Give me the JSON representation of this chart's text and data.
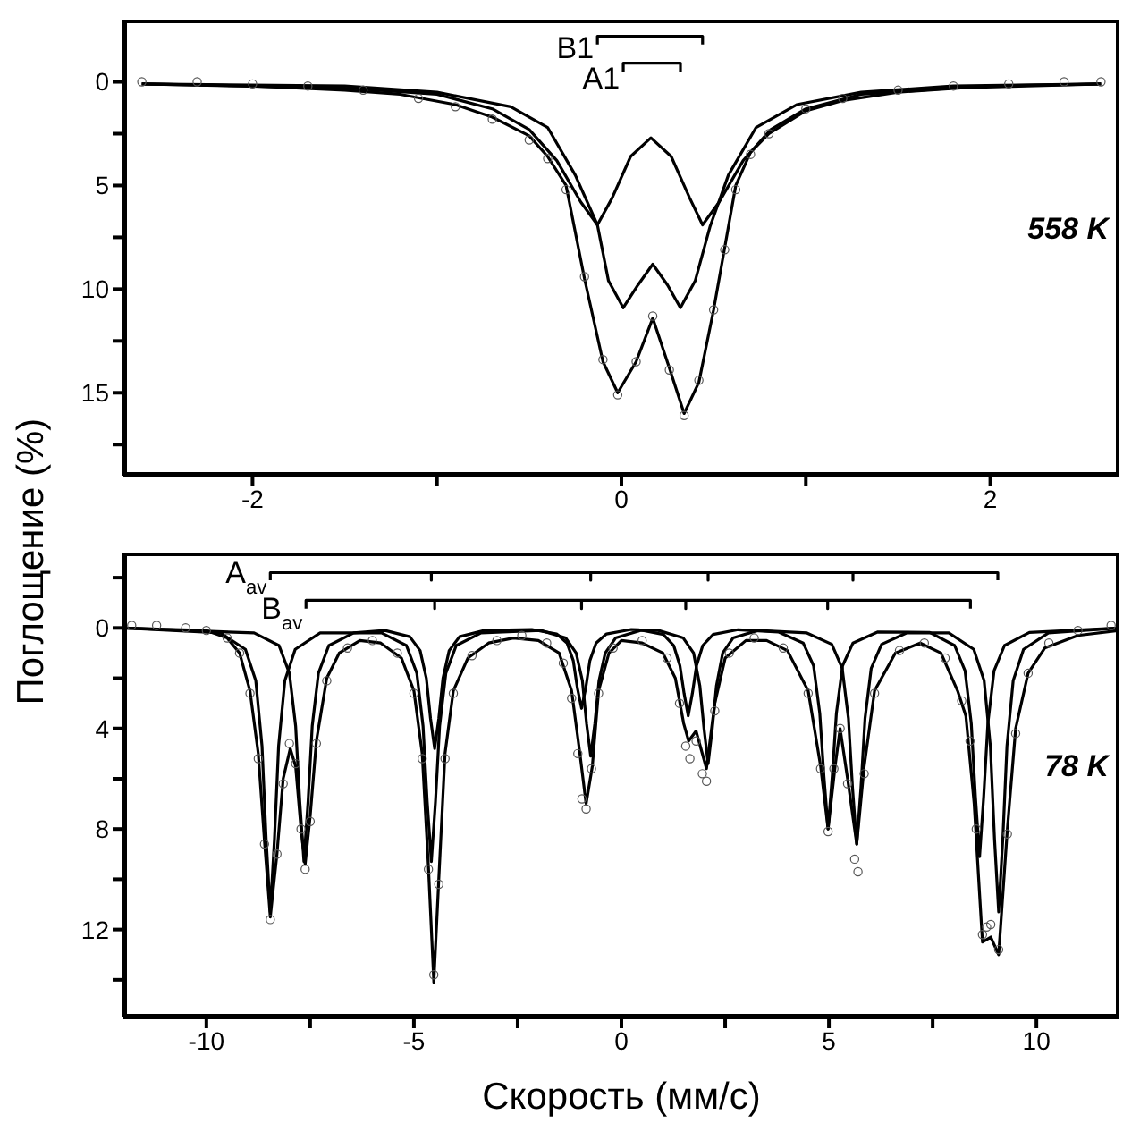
{
  "chart_data": [
    {
      "type": "line",
      "xlim": [
        -2.7,
        2.7
      ],
      "xticks": [
        -2,
        {
          "value": -1,
          "label": null
        },
        0,
        {
          "value": 1,
          "label": null
        },
        2
      ],
      "ylim": [
        19,
        -3
      ],
      "yticks": [
        0,
        {
          "value": 2.5,
          "label": null
        },
        5,
        {
          "value": 7.5,
          "label": null
        },
        10,
        {
          "value": 12.5,
          "label": null
        },
        15,
        {
          "value": 17.5,
          "label": null
        }
      ],
      "grid": false,
      "line_style": "solid",
      "annotations": [
        "558 K",
        {
          "text": "B1",
          "x": -0.13,
          "y": -1.65
        },
        {
          "text": "A1",
          "x": 0.01,
          "y": -0.2
        }
      ],
      "series": [
        {
          "type": "scatter",
          "marker": "circle",
          "color": "#555555",
          "x": [
            -2.6,
            -2.3,
            -2,
            -1.7,
            -1.4,
            -1.1,
            -0.9,
            -0.7,
            -0.5,
            -0.4,
            -0.3,
            -0.2,
            -0.1,
            -0.02,
            0.08,
            0.17,
            0.26,
            0.34,
            0.42,
            0.5,
            0.56,
            0.62,
            0.7,
            0.8,
            1.0,
            1.2,
            1.5,
            1.8,
            2.1,
            2.4,
            2.6
          ],
          "values": [
            0,
            0,
            0.1,
            0.2,
            0.4,
            0.8,
            1.2,
            1.8,
            2.8,
            3.7,
            5.2,
            9.4,
            13.4,
            15.1,
            13.5,
            11.3,
            13.9,
            16.1,
            14.4,
            11,
            8.1,
            5.2,
            3.5,
            2.5,
            1.3,
            0.8,
            0.4,
            0.2,
            0.1,
            0,
            0
          ]
        },
        {
          "type": "line",
          "color": "#000000",
          "x": [
            -2.6,
            -2,
            -1.5,
            -1.2,
            -0.9,
            -0.7,
            -0.5,
            -0.4,
            -0.3,
            -0.2,
            -0.1,
            -0.02,
            0.08,
            0.17,
            0.26,
            0.34,
            0.42,
            0.5,
            0.56,
            0.62,
            0.7,
            0.8,
            1.0,
            1.2,
            1.5,
            2,
            2.6
          ],
          "values": [
            0.1,
            0.2,
            0.4,
            0.6,
            1.1,
            1.7,
            2.6,
            3.6,
            5,
            9.5,
            13.5,
            15.0,
            13.5,
            11.4,
            13.8,
            16.0,
            14.5,
            11,
            8,
            5,
            3.4,
            2.5,
            1.4,
            0.9,
            0.5,
            0.2,
            0.1
          ]
        },
        {
          "type": "line",
          "color": "#000000",
          "x": [
            -2.6,
            -1.5,
            -1,
            -0.6,
            -0.4,
            -0.25,
            -0.13,
            -0.07,
            0.01,
            0.09,
            0.17,
            0.25,
            0.32,
            0.4,
            0.48,
            0.58,
            0.73,
            0.95,
            1.3,
            1.8,
            2.6
          ],
          "values": [
            0.1,
            0.2,
            0.5,
            1.2,
            2.2,
            4.5,
            6.9,
            9.6,
            10.9,
            9.8,
            8.8,
            9.8,
            10.9,
            9.6,
            7,
            4.5,
            2.2,
            1.1,
            0.5,
            0.2,
            0.1
          ]
        },
        {
          "type": "line",
          "color": "#000000",
          "x": [
            -2.6,
            -1.5,
            -1,
            -0.7,
            -0.5,
            -0.35,
            -0.22,
            -0.13,
            -0.05,
            0.05,
            0.16,
            0.27,
            0.37,
            0.44,
            0.53,
            0.66,
            0.81,
            1.0,
            1.3,
            1.8,
            2.6
          ],
          "values": [
            0.1,
            0.3,
            0.6,
            1.3,
            2.3,
            3.8,
            5.8,
            6.9,
            5.6,
            3.6,
            2.7,
            3.6,
            5.6,
            6.9,
            5.8,
            3.8,
            2.3,
            1.3,
            0.6,
            0.3,
            0.1
          ]
        },
        {
          "type": "line",
          "color": "#000000",
          "x": [
            -0.13,
            -0.13,
            0.44,
            0.44
          ],
          "values": [
            -1.8,
            -2.2,
            -2.2,
            -1.8
          ]
        },
        {
          "type": "line",
          "color": "#000000",
          "x": [
            0.01,
            0.01,
            0.32,
            0.32
          ],
          "values": [
            -0.5,
            -0.9,
            -0.9,
            -0.5
          ]
        }
      ]
    },
    {
      "type": "line",
      "xlabel": "Скорость (мм/с)",
      "ylabel": "Поглощение (%)",
      "xlim": [
        -12,
        12
      ],
      "xticks": [
        -10,
        {
          "value": -7.5,
          "label": null
        },
        -5,
        {
          "value": -2.5,
          "label": null
        },
        0,
        {
          "value": 2.5,
          "label": null
        },
        5,
        {
          "value": 7.5,
          "label": null
        },
        10
      ],
      "ylim": [
        15.5,
        -3
      ],
      "yticks": [
        {
          "value": -2,
          "label": null
        },
        0,
        {
          "value": 2,
          "label": null
        },
        4,
        {
          "value": 6,
          "label": null
        },
        8,
        {
          "value": 10,
          "label": null
        },
        12,
        {
          "value": 14,
          "label": null
        }
      ],
      "grid": false,
      "line_style": "solid",
      "annotations": [
        "78 K",
        {
          "text": "A$_{av}$",
          "x": -8.46,
          "y": -2.2
        },
        {
          "text": "B$_{av}$",
          "x": -7.6,
          "y": -0.8
        }
      ],
      "series": [
        {
          "type": "scatter",
          "marker": "circle",
          "color": "#555555",
          "x": [
            -11.8,
            -11.2,
            -10.5,
            -10,
            -9.5,
            -9.2,
            -8.95,
            -8.75,
            -8.6,
            -8.46,
            -8.3,
            -8.15,
            -8,
            -7.85,
            -7.72,
            -7.62,
            -7.5,
            -7.35,
            -7.1,
            -6.6,
            -6,
            -5.4,
            -5,
            -4.8,
            -4.65,
            -4.52,
            -4.4,
            -4.25,
            -4.05,
            -3.6,
            -3,
            -2.4,
            -1.8,
            -1.4,
            -1.2,
            -1.05,
            -0.95,
            -0.85,
            -0.72,
            -0.55,
            -0.2,
            0.5,
            1.1,
            1.4,
            1.55,
            1.65,
            1.8,
            1.95,
            2.05,
            2.25,
            2.6,
            3.2,
            3.9,
            4.5,
            4.8,
            4.98,
            5.12,
            5.27,
            5.45,
            5.62,
            5.7,
            5.85,
            6.1,
            6.7,
            7.3,
            7.8,
            8.2,
            8.4,
            8.55,
            8.7,
            8.8,
            8.9,
            9.09,
            9.3,
            9.5,
            9.8,
            10.3,
            11,
            11.8
          ],
          "values": [
            -0.1,
            -0.1,
            0,
            0.1,
            0.4,
            1.0,
            2.6,
            5.2,
            8.6,
            11.6,
            9,
            6.2,
            4.6,
            5.4,
            8,
            9.6,
            7.7,
            4.6,
            2.1,
            0.8,
            0.5,
            1.0,
            2.6,
            5.2,
            9.6,
            13.8,
            10.2,
            5.2,
            2.6,
            1.1,
            0.5,
            0.3,
            0.6,
            1.4,
            2.8,
            5,
            6.8,
            7.2,
            5.6,
            2.6,
            0.8,
            0.5,
            1.2,
            3,
            4.7,
            5.2,
            4.5,
            5.8,
            6.1,
            3.3,
            1,
            0.4,
            0.8,
            2.6,
            5.6,
            8.1,
            5.6,
            4.0,
            6.2,
            9.2,
            9.7,
            5.8,
            2.6,
            0.9,
            0.6,
            1.2,
            2.9,
            4.5,
            8,
            12.2,
            11.9,
            11.8,
            12.8,
            8.2,
            4.2,
            1.8,
            0.6,
            0.1,
            -0.1
          ]
        },
        {
          "type": "line",
          "color": "#000000",
          "x": [
            -12,
            -11,
            -10,
            -9.5,
            -9.2,
            -8.95,
            -8.75,
            -8.6,
            -8.46,
            -8.3,
            -8.15,
            -7.98,
            -7.85,
            -7.72,
            -7.62,
            -7.5,
            -7.35,
            -7.1,
            -6.8,
            -6.3,
            -5.8,
            -5.3,
            -5.0,
            -4.8,
            -4.65,
            -4.52,
            -4.4,
            -4.25,
            -4.05,
            -3.7,
            -3.2,
            -2.6,
            -2,
            -1.5,
            -1.2,
            -1.0,
            -0.85,
            -0.7,
            -0.55,
            -0.3,
            0,
            0.5,
            1.0,
            1.3,
            1.5,
            1.62,
            1.8,
            2.05,
            2.25,
            2.5,
            3,
            3.5,
            4.0,
            4.5,
            4.8,
            4.98,
            5.15,
            5.27,
            5.45,
            5.67,
            5.85,
            6.1,
            6.6,
            7.2,
            7.7,
            8.1,
            8.3,
            8.5,
            8.7,
            8.9,
            9.09,
            9.3,
            9.5,
            9.8,
            10.2,
            11,
            12
          ],
          "values": [
            0,
            0.05,
            0.1,
            0.4,
            1.0,
            2.5,
            5,
            8.5,
            11.5,
            9,
            6,
            4.8,
            5.5,
            8,
            9.4,
            7.5,
            4.5,
            2,
            1,
            0.5,
            0.6,
            1.2,
            2.5,
            5,
            9.5,
            14.1,
            10,
            5,
            2.5,
            1.2,
            0.6,
            0.4,
            0.5,
            1.0,
            2.5,
            5,
            7.0,
            5.5,
            2.5,
            1.0,
            0.5,
            0.6,
            1.0,
            2.0,
            3.8,
            4.5,
            4.1,
            5.6,
            3.0,
            1.2,
            0.5,
            0.5,
            0.9,
            2.5,
            5.5,
            8.0,
            5.5,
            4.0,
            6.0,
            8.6,
            5.5,
            2.5,
            1.0,
            0.6,
            1.0,
            2.5,
            3.5,
            7,
            12.5,
            12.3,
            13.0,
            8,
            4,
            1.8,
            0.8,
            0.3,
            0.1
          ]
        },
        {
          "type": "line",
          "color": "#000000",
          "x": [
            -12,
            -9.66,
            -9.06,
            -8.81,
            -8.66,
            -8.56,
            -8.46,
            -8.36,
            -8.26,
            -8.11,
            -7.86,
            -7.26,
            -5.78,
            -5.18,
            -4.93,
            -4.78,
            -4.68,
            -4.58,
            -4.48,
            -4.38,
            -4.23,
            -3.98,
            -3.38,
            -1.94,
            -1.34,
            -1.09,
            -0.94,
            -0.84,
            -0.74,
            -0.64,
            -0.54,
            -0.39,
            -0.14,
            0.46,
            0.89,
            1.49,
            1.74,
            1.89,
            1.99,
            2.09,
            2.19,
            2.29,
            2.44,
            2.69,
            3.29,
            4.47,
            5.07,
            5.32,
            5.47,
            5.57,
            5.67,
            5.77,
            5.87,
            6.02,
            6.27,
            6.87,
            7.89,
            8.49,
            8.74,
            8.89,
            8.99,
            9.09,
            9.19,
            9.29,
            9.44,
            9.69,
            10.29,
            12
          ],
          "values": [
            0,
            0.2,
            0.85,
            2.1,
            4.7,
            8.4,
            11.3,
            8.4,
            4.7,
            2.1,
            0.85,
            0.2,
            0.2,
            0.7,
            1.8,
            3.9,
            6.9,
            9.3,
            6.9,
            3.9,
            1.8,
            0.7,
            0.2,
            0.1,
            0.4,
            1.0,
            2.1,
            3.8,
            5.1,
            3.8,
            2.1,
            1.0,
            0.4,
            0.1,
            0.1,
            0.4,
            1.0,
            2.3,
            4.0,
            5.4,
            4.0,
            2.3,
            1.0,
            0.4,
            0.1,
            0.2,
            0.65,
            1.6,
            3.6,
            6.4,
            8.6,
            6.4,
            3.6,
            1.6,
            0.65,
            0.2,
            0.2,
            0.85,
            2.1,
            4.7,
            8.4,
            11.3,
            8.4,
            4.7,
            2.1,
            0.85,
            0.2,
            0
          ]
        },
        {
          "type": "line",
          "color": "#000000",
          "x": [
            -12,
            -8.85,
            -8.25,
            -8.0,
            -7.85,
            -7.75,
            -7.65,
            -7.55,
            -7.45,
            -7.3,
            -7.05,
            -6.45,
            -5.7,
            -5.1,
            -4.85,
            -4.7,
            -4.6,
            -4.5,
            -4.4,
            -4.3,
            -4.15,
            -3.9,
            -3.3,
            -2.16,
            -1.56,
            -1.31,
            -1.16,
            -1.06,
            -0.96,
            -0.86,
            -0.76,
            -0.61,
            -0.36,
            0.24,
            0.41,
            1.01,
            1.26,
            1.41,
            1.51,
            1.61,
            1.71,
            1.81,
            1.96,
            2.21,
            2.81,
            3.78,
            4.38,
            4.63,
            4.78,
            4.88,
            4.98,
            5.08,
            5.18,
            5.33,
            5.58,
            6.18,
            7.43,
            8.03,
            8.28,
            8.43,
            8.53,
            8.63,
            8.73,
            8.83,
            8.98,
            9.23,
            9.83,
            12
          ],
          "values": [
            0,
            0.2,
            0.7,
            1.8,
            3.9,
            6.9,
            9.3,
            6.9,
            3.9,
            1.8,
            0.7,
            0.2,
            0.1,
            0.35,
            0.9,
            2.0,
            3.6,
            4.8,
            3.6,
            2.0,
            0.9,
            0.35,
            0.1,
            0.06,
            0.24,
            0.6,
            1.3,
            2.4,
            3.2,
            2.4,
            1.3,
            0.6,
            0.24,
            0.06,
            0.07,
            0.26,
            0.7,
            1.5,
            2.6,
            3.5,
            2.6,
            1.5,
            0.7,
            0.26,
            0.07,
            0.16,
            0.6,
            1.5,
            3.4,
            5.9,
            8.0,
            5.9,
            3.4,
            1.5,
            0.6,
            0.16,
            0.18,
            0.7,
            1.7,
            3.8,
            6.7,
            9.1,
            6.7,
            3.8,
            1.7,
            0.7,
            0.18,
            0
          ]
        },
        {
          "type": "line",
          "color": "#000000",
          "x": [
            -8.46,
            -8.46,
            -4.58,
            -4.58,
            -4.58,
            -0.74,
            -0.74,
            -0.74,
            2.09,
            2.09,
            2.09,
            5.58,
            5.58,
            5.58,
            9.07,
            9.07
          ],
          "values": [
            -1.9,
            -2.2,
            -2.2,
            -1.9,
            -2.2,
            -2.2,
            -1.9,
            -2.2,
            -2.2,
            -1.9,
            -2.2,
            -2.2,
            -1.9,
            -2.2,
            -2.2,
            -1.9
          ]
        },
        {
          "type": "line",
          "color": "#000000",
          "x": [
            -7.6,
            -7.6,
            -4.5,
            -4.5,
            -4.5,
            -0.96,
            -0.96,
            -0.96,
            1.55,
            1.55,
            1.55,
            4.97,
            4.97,
            4.97,
            8.41,
            8.41
          ],
          "values": [
            -0.77,
            -1.1,
            -1.1,
            -0.77,
            -1.1,
            -1.1,
            -0.77,
            -1.1,
            -1.1,
            -0.77,
            -1.1,
            -1.1,
            -0.77,
            -1.1,
            -1.1,
            -0.77
          ]
        }
      ]
    }
  ]
}
